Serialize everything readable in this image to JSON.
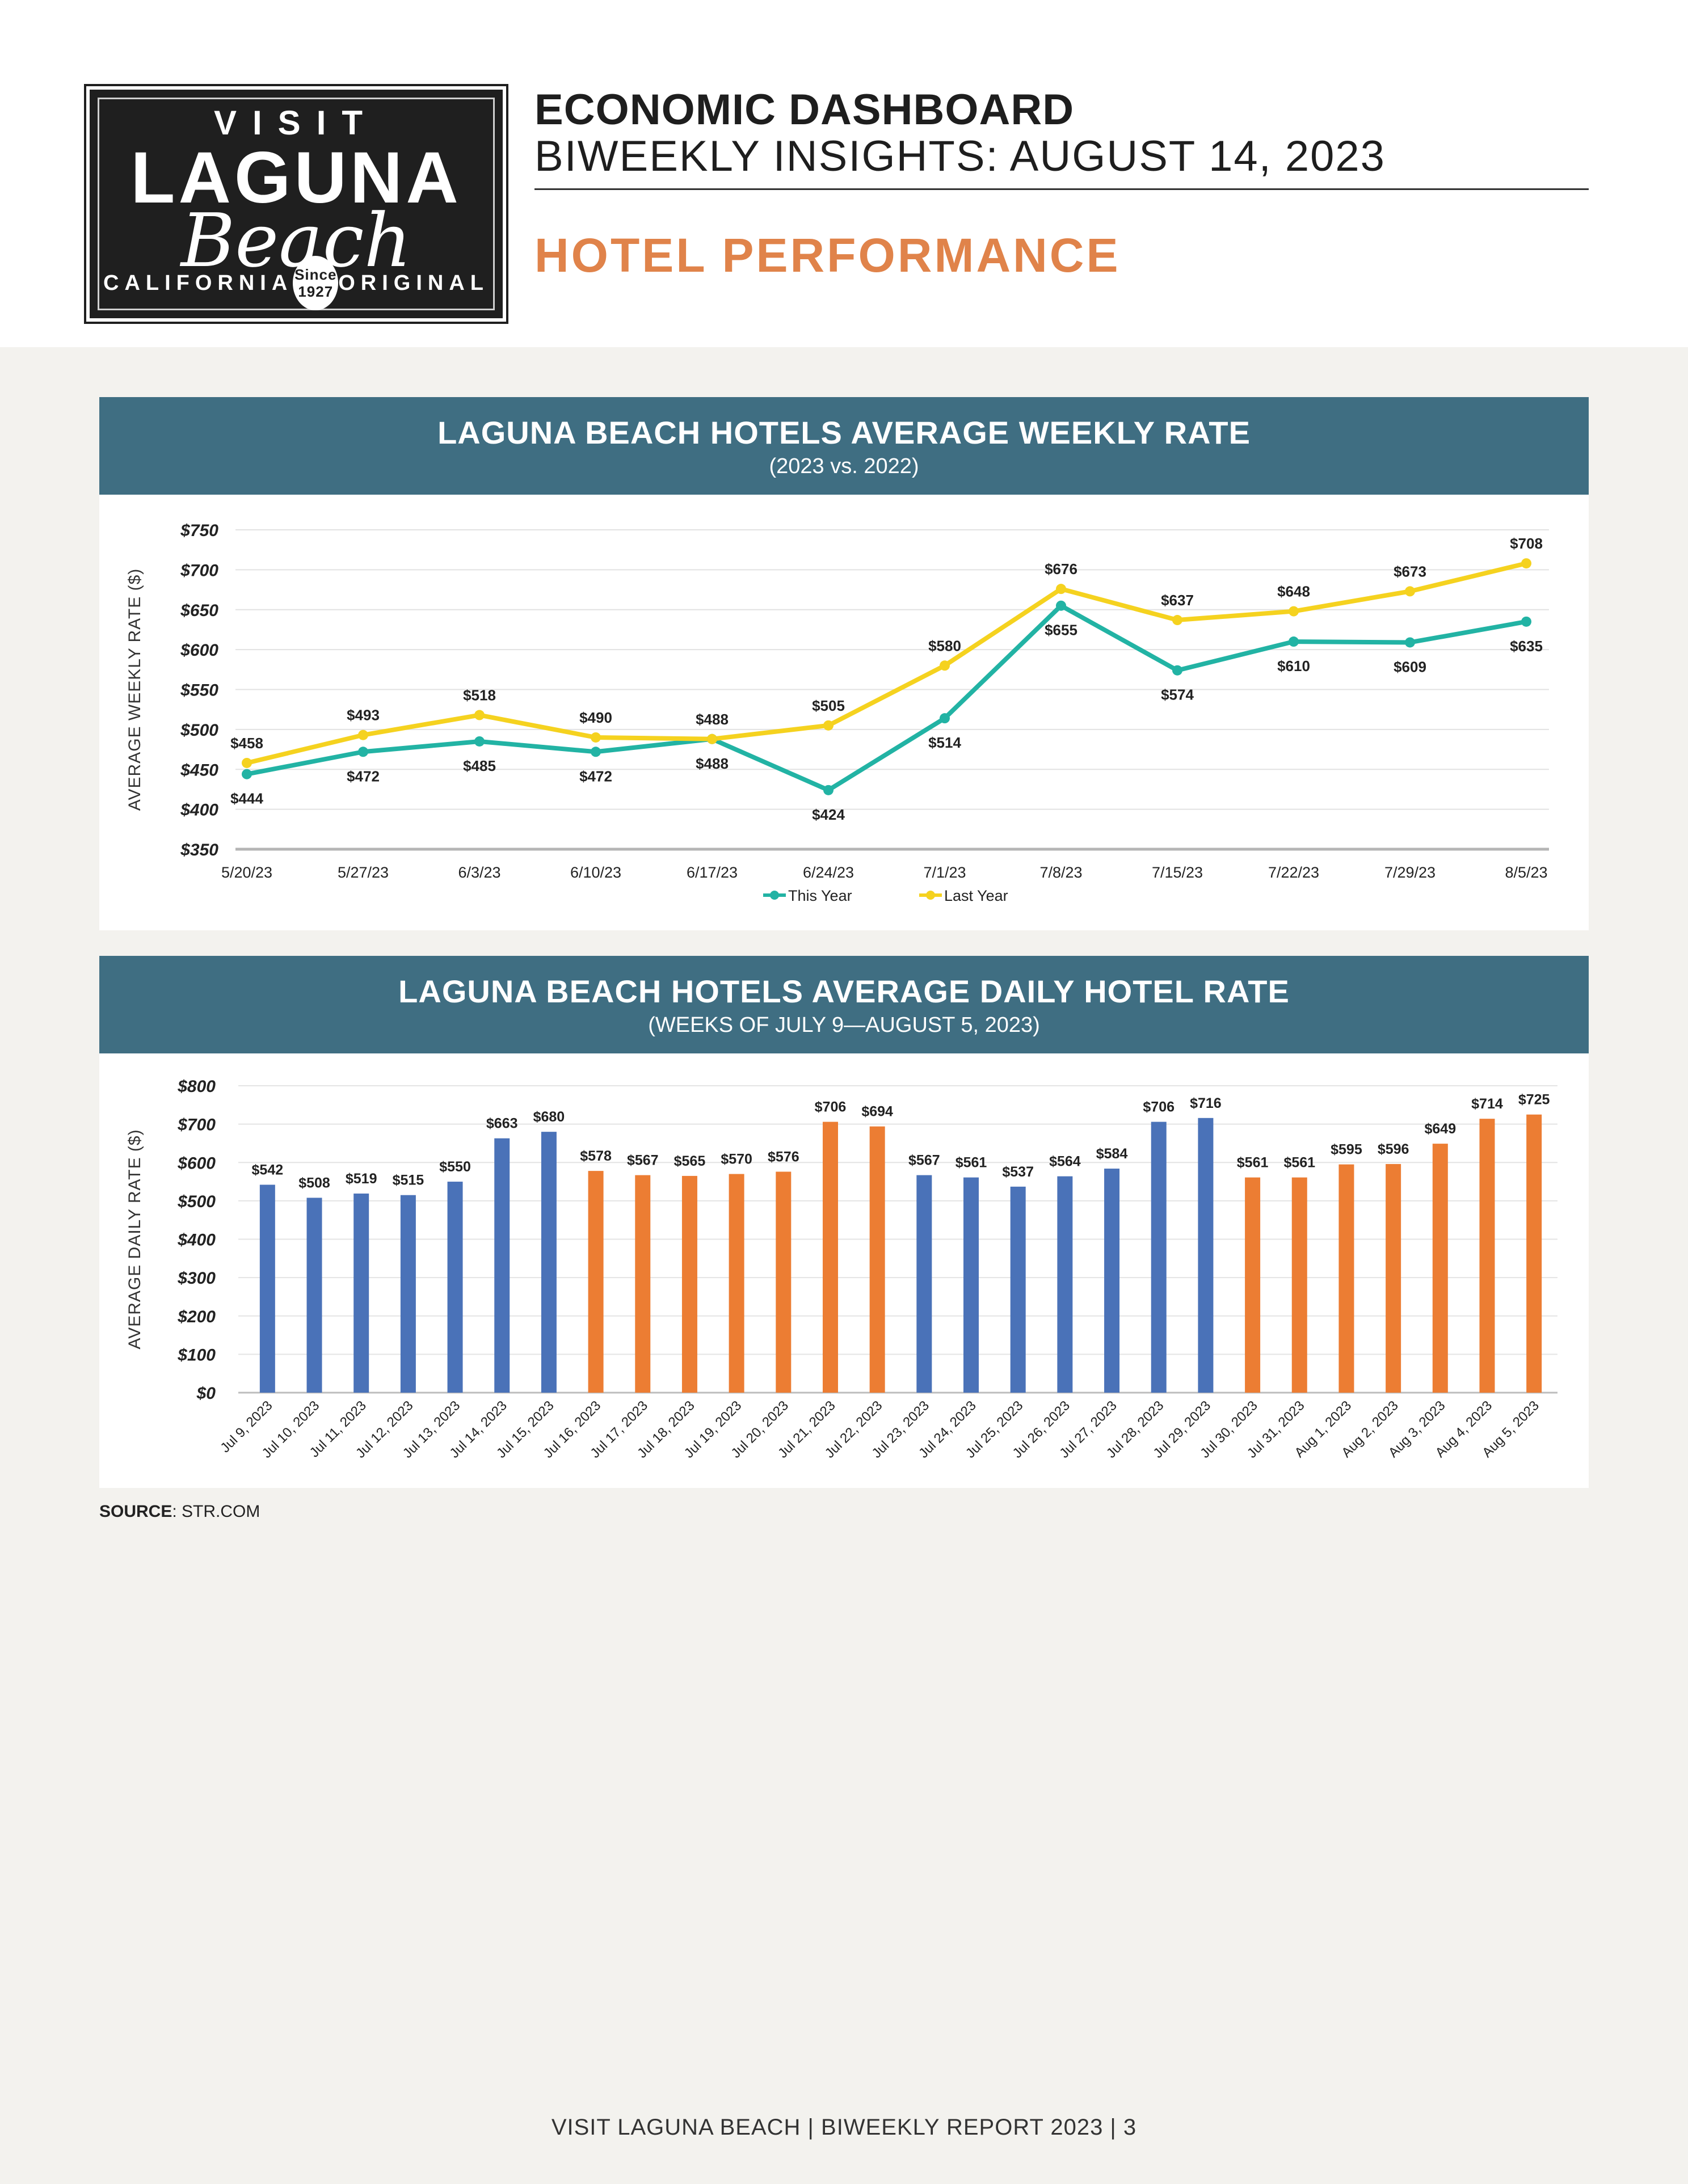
{
  "logo": {
    "visit": "VISIT",
    "laguna": "LAGUNA",
    "beach": "Beach",
    "california": "CALIFORNIA",
    "since": "Since",
    "year": "1927",
    "original": "ORIGINAL"
  },
  "header": {
    "title": "ECONOMIC DASHBOARD",
    "subtitle": "BIWEEKLY INSIGHTS: AUGUST 14, 2023",
    "section": "HOTEL PERFORMANCE"
  },
  "colors": {
    "header_band": "#3f6e82",
    "this_year": "#22b3a4",
    "last_year": "#f5d21f",
    "bar_blue": "#4a72b8",
    "bar_orange": "#ec7d33",
    "section": "#e0834a"
  },
  "chart_data": [
    {
      "type": "line",
      "title": "LAGUNA BEACH HOTELS AVERAGE WEEKLY RATE",
      "subtitle": "(2023 vs. 2022)",
      "ylabel": "AVERAGE WEEKLY RATE ($)",
      "ylim": [
        350,
        750
      ],
      "yticks": [
        350,
        400,
        450,
        500,
        550,
        600,
        650,
        700,
        750
      ],
      "ytick_labels": [
        "$350",
        "$400",
        "$450",
        "$500",
        "$550",
        "$600",
        "$650",
        "$700",
        "$750"
      ],
      "categories": [
        "5/20/23",
        "5/27/23",
        "6/3/23",
        "6/10/23",
        "6/17/23",
        "6/24/23",
        "7/1/23",
        "7/8/23",
        "7/15/23",
        "7/22/23",
        "7/29/23",
        "8/5/23"
      ],
      "series": [
        {
          "name": "This Year",
          "values": [
            444,
            472,
            485,
            472,
            488,
            424,
            514,
            655,
            574,
            610,
            609,
            635
          ],
          "labels": [
            "$444",
            "$472",
            "$485",
            "$472",
            "$488",
            "$424",
            "$514",
            "$655",
            "$574",
            "$610",
            "$609",
            "$635"
          ]
        },
        {
          "name": "Last Year",
          "values": [
            458,
            493,
            518,
            490,
            488,
            505,
            580,
            676,
            637,
            648,
            673,
            708
          ],
          "labels": [
            "$458",
            "$493",
            "$518",
            "$490",
            "$488",
            "$505",
            "$580",
            "$676",
            "$637",
            "$648",
            "$673",
            "$708"
          ]
        }
      ],
      "legend": "bottom-center"
    },
    {
      "type": "bar",
      "title": "LAGUNA BEACH HOTELS AVERAGE DAILY HOTEL RATE",
      "subtitle": "(WEEKS OF JULY 9—AUGUST 5, 2023)",
      "ylabel": "AVERAGE DAILY RATE ($)",
      "ylim": [
        0,
        800
      ],
      "yticks": [
        0,
        100,
        200,
        300,
        400,
        500,
        600,
        700,
        800
      ],
      "ytick_labels": [
        "$0",
        "$100",
        "$200",
        "$300",
        "$400",
        "$500",
        "$600",
        "$700",
        "$800"
      ],
      "categories": [
        "Jul 9, 2023",
        "Jul 10, 2023",
        "Jul 11, 2023",
        "Jul 12, 2023",
        "Jul 13, 2023",
        "Jul 14, 2023",
        "Jul 15, 2023",
        "Jul 16, 2023",
        "Jul 17, 2023",
        "Jul 18, 2023",
        "Jul 19, 2023",
        "Jul 20, 2023",
        "Jul 21, 2023",
        "Jul 22, 2023",
        "Jul 23, 2023",
        "Jul 24, 2023",
        "Jul 25, 2023",
        "Jul 26, 2023",
        "Jul 27, 2023",
        "Jul 28, 2023",
        "Jul 29, 2023",
        "Jul 30, 2023",
        "Jul 31, 2023",
        "Aug 1, 2023",
        "Aug 2, 2023",
        "Aug 3, 2023",
        "Aug 4, 2023",
        "Aug 5, 2023"
      ],
      "values": [
        542,
        508,
        519,
        515,
        550,
        663,
        680,
        578,
        567,
        565,
        570,
        576,
        706,
        694,
        567,
        561,
        537,
        564,
        584,
        706,
        716,
        561,
        561,
        595,
        596,
        649,
        714,
        725
      ],
      "labels": [
        "$542",
        "$508",
        "$519",
        "$515",
        "$550",
        "$663",
        "$680",
        "$578",
        "$567",
        "$565",
        "$570",
        "$576",
        "$706",
        "$694",
        "$567",
        "$561",
        "$537",
        "$564",
        "$584",
        "$706",
        "$716",
        "$561",
        "$561",
        "$595",
        "$596",
        "$649",
        "$714",
        "$725"
      ],
      "bar_colors": [
        "blue",
        "blue",
        "blue",
        "blue",
        "blue",
        "blue",
        "blue",
        "orange",
        "orange",
        "orange",
        "orange",
        "orange",
        "orange",
        "orange",
        "blue",
        "blue",
        "blue",
        "blue",
        "blue",
        "blue",
        "blue",
        "orange",
        "orange",
        "orange",
        "orange",
        "orange",
        "orange",
        "orange"
      ]
    }
  ],
  "source": {
    "label": "SOURCE",
    "value": ": STR.COM"
  },
  "footer": "VISIT LAGUNA BEACH  |  BIWEEKLY REPORT 2023  |  3"
}
